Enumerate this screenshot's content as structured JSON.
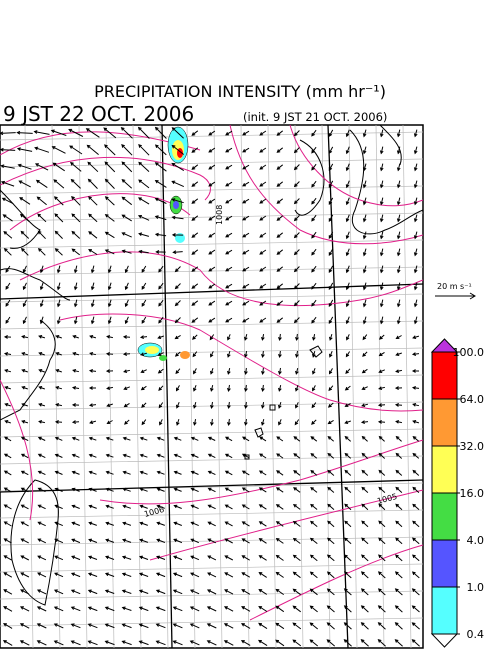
{
  "header": {
    "title": "PRECIPITATION INTENSITY (mm hr⁻¹)",
    "valid_time": "9 JST 22 OCT. 2006",
    "init": "(init. 9 JST 21 OCT. 2006)"
  },
  "wind_scale": {
    "label": "20 m s⁻¹"
  },
  "contour_labels": [
    "1008",
    "1006",
    "1005"
  ],
  "colorbar": {
    "ticks": [
      {
        "value": 100,
        "label": "100.0"
      },
      {
        "value": 64,
        "label": "64.0"
      },
      {
        "value": 32,
        "label": "32.0"
      },
      {
        "value": 16,
        "label": "16.0"
      },
      {
        "value": 4,
        "label": "4.0"
      },
      {
        "value": 1,
        "label": "1.0"
      },
      {
        "value": 0.4,
        "label": "0.4"
      }
    ],
    "colors": [
      "#ff0000",
      "#ff9933",
      "#ffff55",
      "#44dd44",
      "#5555ff",
      "#55ffff"
    ],
    "over_color": "#bb33dd",
    "under_color": "#ffffff"
  }
}
